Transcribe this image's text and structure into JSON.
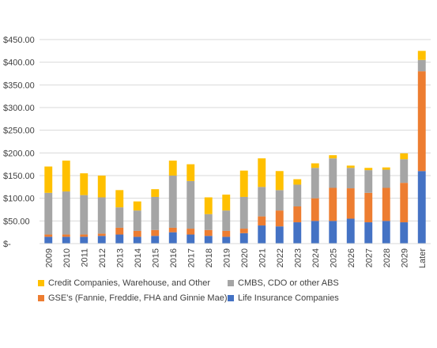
{
  "chart_data": {
    "type": "bar",
    "stacked": true,
    "title": "",
    "xlabel": "",
    "ylabel": "",
    "ylim": [
      0,
      450
    ],
    "y_ticks": [
      0,
      50,
      100,
      150,
      200,
      250,
      300,
      350,
      400,
      450
    ],
    "y_tick_labels": [
      "$-",
      "$50.00",
      "$100.00",
      "$150.00",
      "$200.00",
      "$250.00",
      "$300.00",
      "$350.00",
      "$400.00",
      "$450.00"
    ],
    "grid": true,
    "legend_position": "bottom",
    "categories": [
      "2009",
      "2010",
      "2011",
      "2012",
      "2013",
      "2014",
      "2015",
      "2016",
      "2017",
      "2018",
      "2019",
      "2020",
      "2021",
      "2022",
      "2023",
      "2024",
      "2025",
      "2026",
      "2027",
      "2028",
      "2029",
      "Later"
    ],
    "series": [
      {
        "name": "Life Insurance Companies",
        "color": "#4472C4",
        "values": [
          15,
          15,
          15,
          17,
          20,
          15,
          17,
          25,
          20,
          17,
          15,
          23,
          40,
          38,
          47,
          50,
          50,
          55,
          47,
          50,
          47,
          160
        ]
      },
      {
        "name": "GSE's (Fannie, Freddie, FHA and Ginnie Mae)",
        "color": "#ED7D31",
        "values": [
          5,
          5,
          5,
          5,
          15,
          13,
          13,
          10,
          13,
          13,
          13,
          10,
          20,
          35,
          35,
          50,
          73,
          67,
          65,
          73,
          87,
          220
        ]
      },
      {
        "name": "CMBS, CDO or other ABS",
        "color": "#A5A5A5",
        "values": [
          92,
          95,
          87,
          80,
          45,
          45,
          73,
          115,
          105,
          35,
          45,
          70,
          65,
          45,
          48,
          67,
          65,
          45,
          50,
          40,
          52,
          25
        ]
      },
      {
        "name": "Credit Companies, Warehouse, and Other",
        "color": "#FFC000",
        "values": [
          58,
          68,
          48,
          48,
          38,
          20,
          17,
          33,
          37,
          37,
          35,
          58,
          63,
          42,
          12,
          10,
          7,
          5,
          5,
          5,
          13,
          20
        ]
      }
    ],
    "legend_order": [
      3,
      2,
      1,
      0
    ]
  }
}
